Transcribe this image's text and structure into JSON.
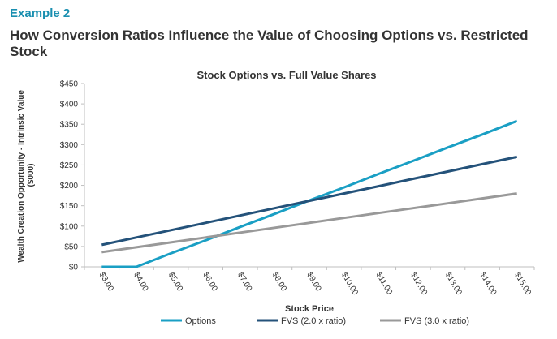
{
  "header": {
    "example_label": "Example 2",
    "title": "How Conversion Ratios Influence the Value of Choosing Options vs. Restricted Stock"
  },
  "colors": {
    "options": "#1a9fc4",
    "fvs_2": "#24527a",
    "fvs_3": "#999999",
    "axis": "#bfbfbf",
    "text": "#333333"
  },
  "chart_data": {
    "type": "line",
    "title": "Stock Options vs. Full Value Shares",
    "xlabel": "Stock Price",
    "ylabel_lines": [
      "Wealth Creation Opportunity - Intrinsic Value",
      "($000)"
    ],
    "categories": [
      "$3.00",
      "$4.00",
      "$5.00",
      "$6.00",
      "$7.00",
      "$8.00",
      "$9.00",
      "$10.00",
      "$11.00",
      "$12.00",
      "$13.00",
      "$14.00",
      "$15.00"
    ],
    "x": [
      3,
      4,
      5,
      6,
      7,
      8,
      9,
      10,
      11,
      12,
      13,
      14,
      15
    ],
    "yticks": [
      "$0",
      "$50",
      "$100",
      "$150",
      "$200",
      "$250",
      "$300",
      "$350",
      "$400",
      "$450"
    ],
    "ylim": [
      0,
      450
    ],
    "grid": false,
    "legend_position": "bottom",
    "series": [
      {
        "name": "Options",
        "color_key": "options",
        "values": [
          0,
          0,
          33,
          65,
          98,
          130,
          163,
          195,
          228,
          260,
          293,
          325,
          358
        ]
      },
      {
        "name": "FVS (2.0 x ratio)",
        "color_key": "fvs_2",
        "values": [
          54,
          72,
          90,
          108,
          126,
          144,
          162,
          180,
          198,
          216,
          234,
          252,
          270
        ]
      },
      {
        "name": "FVS (3.0 x ratio)",
        "color_key": "fvs_3",
        "values": [
          36,
          48,
          60,
          72,
          84,
          96,
          108,
          120,
          132,
          144,
          156,
          168,
          180
        ]
      }
    ]
  }
}
